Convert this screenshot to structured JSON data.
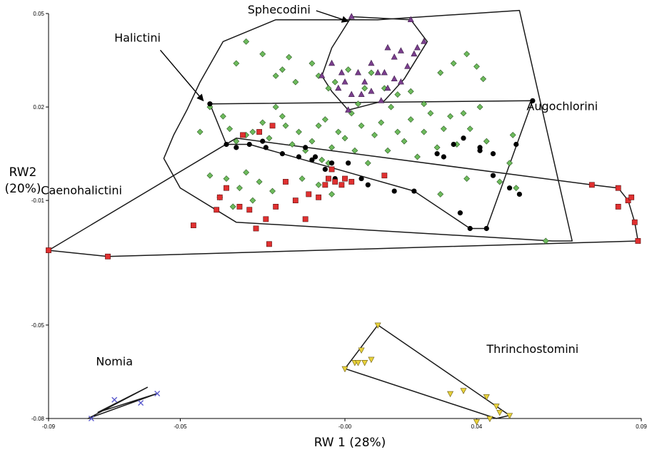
{
  "chart_data": {
    "type": "scatter",
    "title": "",
    "xlabel": "RW 1 (28%)",
    "ylabel_line1": "RW2",
    "ylabel_line2": "(20%)",
    "xlim": [
      -0.09,
      0.09
    ],
    "ylim": [
      -0.08,
      0.05
    ],
    "x_ticks": [
      {
        "value": -0.09,
        "label": "-0.09"
      },
      {
        "value": -0.05,
        "label": "-0.05"
      },
      {
        "value": 0.0,
        "label": "-0.00"
      },
      {
        "value": 0.04,
        "label": "0.04"
      },
      {
        "value": 0.09,
        "label": "0.09"
      }
    ],
    "y_ticks": [
      {
        "value": 0.05,
        "label": "0.05"
      },
      {
        "value": 0.02,
        "label": "0.02"
      },
      {
        "value": -0.01,
        "label": "-0.01"
      },
      {
        "value": -0.05,
        "label": "-0.05"
      },
      {
        "value": -0.08,
        "label": "-0.08"
      }
    ],
    "grid": false,
    "legend": "none",
    "series": [
      {
        "name": "Halictini",
        "marker": "diamond",
        "color": "#6dbb5c",
        "hull": [
          [
            0.053,
            0.051
          ],
          [
            0.069,
            -0.023
          ],
          [
            0.063,
            -0.023
          ],
          [
            -0.033,
            -0.017
          ],
          [
            -0.05,
            -0.006
          ],
          [
            -0.055,
            0.0035
          ],
          [
            -0.052,
            0.011
          ],
          [
            -0.048,
            0.019
          ],
          [
            -0.044,
            0.028
          ],
          [
            -0.037,
            0.041
          ],
          [
            -0.021,
            0.048
          ],
          [
            0.01,
            0.048
          ]
        ],
        "points": [
          [
            -0.03,
            0.041
          ],
          [
            -0.033,
            0.034
          ],
          [
            -0.025,
            0.037
          ],
          [
            -0.021,
            0.03
          ],
          [
            -0.019,
            0.032
          ],
          [
            -0.017,
            0.036
          ],
          [
            -0.015,
            0.028
          ],
          [
            -0.01,
            0.034
          ],
          [
            -0.008,
            0.03
          ],
          [
            -0.005,
            0.026
          ],
          [
            -0.003,
            0.028
          ],
          [
            0.001,
            0.032
          ],
          [
            0.004,
            0.021
          ],
          [
            0.006,
            0.026
          ],
          [
            0.008,
            0.031
          ],
          [
            0.012,
            0.026
          ],
          [
            0.016,
            0.024
          ],
          [
            0.02,
            0.025
          ],
          [
            0.024,
            0.021
          ],
          [
            0.029,
            0.031
          ],
          [
            0.033,
            0.034
          ],
          [
            0.037,
            0.037
          ],
          [
            0.04,
            0.033
          ],
          [
            0.042,
            0.029
          ],
          [
            -0.044,
            0.012
          ],
          [
            -0.041,
            0.02
          ],
          [
            -0.037,
            0.017
          ],
          [
            -0.035,
            0.013
          ],
          [
            -0.033,
            0.009
          ],
          [
            -0.03,
            0.011
          ],
          [
            -0.028,
            0.012
          ],
          [
            -0.025,
            0.015
          ],
          [
            -0.023,
            0.01
          ],
          [
            -0.021,
            0.02
          ],
          [
            -0.019,
            0.017
          ],
          [
            -0.018,
            0.014
          ],
          [
            -0.016,
            0.008
          ],
          [
            -0.014,
            0.012
          ],
          [
            -0.012,
            0.006
          ],
          [
            -0.01,
            0.009
          ],
          [
            -0.008,
            0.014
          ],
          [
            -0.007,
            0.003
          ],
          [
            -0.006,
            0.016
          ],
          [
            -0.005,
            0.002
          ],
          [
            -0.004,
            0.007
          ],
          [
            -0.002,
            0.012
          ],
          [
            0.0,
            0.01
          ],
          [
            0.002,
            0.018
          ],
          [
            0.003,
            0.006
          ],
          [
            0.005,
            0.014
          ],
          [
            0.007,
            0.002
          ],
          [
            0.009,
            0.011
          ],
          [
            0.011,
            0.015
          ],
          [
            0.013,
            0.006
          ],
          [
            0.014,
            0.02
          ],
          [
            0.016,
            0.012
          ],
          [
            0.018,
            0.009
          ],
          [
            0.02,
            0.016
          ],
          [
            0.022,
            0.004
          ],
          [
            0.024,
            0.012
          ],
          [
            0.026,
            0.018
          ],
          [
            0.028,
            0.007
          ],
          [
            0.03,
            0.013
          ],
          [
            0.032,
            0.017
          ],
          [
            0.034,
            0.008
          ],
          [
            0.036,
            0.018
          ],
          [
            0.038,
            0.013
          ],
          [
            0.041,
            0.02
          ],
          [
            0.043,
            0.009
          ],
          [
            -0.041,
            -0.002
          ],
          [
            -0.038,
            -0.009
          ],
          [
            -0.036,
            -0.003
          ],
          [
            -0.034,
            -0.012
          ],
          [
            -0.032,
            -0.006
          ],
          [
            -0.03,
            -0.001
          ],
          [
            -0.028,
            -0.01
          ],
          [
            -0.026,
            -0.004
          ],
          [
            -0.022,
            -0.007
          ],
          [
            -0.013,
            -0.003
          ],
          [
            -0.008,
            -0.005
          ],
          [
            -0.004,
            -0.008
          ],
          [
            0.029,
            -0.008
          ],
          [
            0.037,
            -0.003
          ],
          [
            0.047,
            -0.004
          ],
          [
            0.05,
            0.002
          ],
          [
            0.052,
            -0.006
          ],
          [
            0.051,
            0.011
          ],
          [
            0.061,
            -0.023
          ]
        ]
      },
      {
        "name": "Sphecodini",
        "marker": "triangle-up",
        "color": "#7b3f8e",
        "hull": [
          [
            0.002,
            0.049
          ],
          [
            0.02,
            0.048
          ],
          [
            0.025,
            0.041
          ],
          [
            0.018,
            0.029
          ],
          [
            0.012,
            0.022
          ],
          [
            0.001,
            0.019
          ],
          [
            -0.004,
            0.025
          ],
          [
            -0.007,
            0.03
          ],
          [
            -0.004,
            0.039
          ]
        ],
        "points": [
          [
            0.002,
            0.049
          ],
          [
            0.02,
            0.048
          ],
          [
            0.024,
            0.041
          ],
          [
            -0.007,
            0.03
          ],
          [
            0.001,
            0.019
          ],
          [
            0.011,
            0.022
          ],
          [
            0.017,
            0.028
          ],
          [
            -0.004,
            0.034
          ],
          [
            -0.002,
            0.026
          ],
          [
            0.0,
            0.028
          ],
          [
            0.002,
            0.024
          ],
          [
            0.004,
            0.031
          ],
          [
            0.006,
            0.028
          ],
          [
            0.008,
            0.025
          ],
          [
            0.01,
            0.031
          ],
          [
            0.013,
            0.026
          ],
          [
            0.015,
            0.029
          ],
          [
            0.019,
            0.033
          ],
          [
            0.021,
            0.037
          ],
          [
            0.022,
            0.039
          ],
          [
            0.017,
            0.038
          ],
          [
            0.015,
            0.036
          ],
          [
            0.013,
            0.039
          ],
          [
            0.008,
            0.034
          ],
          [
            -0.001,
            0.031
          ],
          [
            0.005,
            0.024
          ],
          [
            0.012,
            0.031
          ]
        ]
      },
      {
        "name": "Augochlorini",
        "marker": "circle",
        "color": "#000000",
        "hull": [
          [
            -0.041,
            0.021
          ],
          [
            0.057,
            0.022
          ],
          [
            0.043,
            -0.019
          ],
          [
            0.038,
            -0.019
          ],
          [
            0.021,
            -0.007
          ],
          [
            -0.029,
            0.008
          ],
          [
            -0.036,
            0.008
          ]
        ],
        "points": [
          [
            -0.036,
            0.008
          ],
          [
            -0.033,
            0.007
          ],
          [
            -0.029,
            0.008
          ],
          [
            -0.025,
            0.009
          ],
          [
            -0.024,
            0.007
          ],
          [
            -0.019,
            0.005
          ],
          [
            -0.014,
            0.004
          ],
          [
            -0.012,
            0.007
          ],
          [
            -0.01,
            0.003
          ],
          [
            -0.009,
            0.004
          ],
          [
            -0.006,
            0.0
          ],
          [
            -0.004,
            0.002
          ],
          [
            -0.003,
            -0.003
          ],
          [
            0.002,
            -0.004
          ],
          [
            0.005,
            -0.003
          ],
          [
            0.007,
            -0.005
          ],
          [
            0.015,
            -0.007
          ],
          [
            0.021,
            -0.007
          ],
          [
            0.035,
            -0.014
          ],
          [
            0.028,
            0.005
          ],
          [
            0.03,
            0.004
          ],
          [
            0.033,
            0.008
          ],
          [
            0.036,
            0.01
          ],
          [
            0.041,
            0.007
          ],
          [
            0.041,
            0.006
          ],
          [
            0.045,
            0.005
          ],
          [
            0.045,
            -0.002
          ],
          [
            0.05,
            -0.006
          ],
          [
            0.053,
            -0.008
          ],
          [
            0.052,
            0.008
          ],
          [
            0.038,
            -0.019
          ],
          [
            0.043,
            -0.019
          ],
          [
            0.057,
            0.022
          ],
          [
            -0.041,
            0.021
          ],
          [
            0.001,
            0.002
          ]
        ]
      },
      {
        "name": "Caenohalictini",
        "marker": "square",
        "color": "#e03030",
        "hull": [
          [
            -0.09,
            -0.026
          ],
          [
            -0.033,
            0.01
          ],
          [
            0.075,
            -0.005
          ],
          [
            0.083,
            -0.006
          ],
          [
            0.086,
            -0.01
          ],
          [
            0.088,
            -0.017
          ],
          [
            0.089,
            -0.023
          ],
          [
            -0.072,
            -0.028
          ]
        ],
        "points": [
          [
            -0.09,
            -0.026
          ],
          [
            -0.072,
            -0.028
          ],
          [
            -0.046,
            -0.018
          ],
          [
            -0.039,
            -0.013
          ],
          [
            -0.038,
            -0.009
          ],
          [
            -0.036,
            -0.006
          ],
          [
            -0.032,
            -0.012
          ],
          [
            -0.029,
            -0.013
          ],
          [
            -0.027,
            -0.019
          ],
          [
            -0.024,
            -0.016
          ],
          [
            -0.023,
            -0.024
          ],
          [
            -0.018,
            -0.004
          ],
          [
            -0.015,
            -0.01
          ],
          [
            -0.012,
            -0.016
          ],
          [
            -0.006,
            -0.005
          ],
          [
            -0.005,
            -0.003
          ],
          [
            -0.004,
            0.0
          ],
          [
            -0.003,
            -0.004
          ],
          [
            -0.001,
            -0.005
          ],
          [
            0.0,
            -0.003
          ],
          [
            0.002,
            -0.004
          ],
          [
            -0.008,
            -0.009
          ],
          [
            0.012,
            -0.002
          ],
          [
            -0.031,
            0.011
          ],
          [
            -0.026,
            0.012
          ],
          [
            -0.022,
            0.014
          ],
          [
            -0.011,
            -0.008
          ],
          [
            0.075,
            -0.005
          ],
          [
            0.083,
            -0.006
          ],
          [
            0.086,
            -0.01
          ],
          [
            0.088,
            -0.017
          ],
          [
            0.089,
            -0.023
          ],
          [
            0.083,
            -0.012
          ],
          [
            0.087,
            -0.009
          ],
          [
            -0.021,
            -0.012
          ]
        ]
      },
      {
        "name": "Nomia",
        "marker": "x",
        "color": "#5a5acc",
        "hull": [
          [
            -0.057,
            -0.072
          ],
          [
            -0.075,
            -0.078
          ],
          [
            -0.06,
            -0.07
          ],
          [
            -0.078,
            -0.08
          ]
        ],
        "points": [
          [
            -0.057,
            -0.072
          ],
          [
            -0.062,
            -0.075
          ],
          [
            -0.07,
            -0.074
          ],
          [
            -0.077,
            -0.08
          ]
        ]
      },
      {
        "name": "Thrinchostomini",
        "marker": "triangle-down",
        "color": "#e8d23a",
        "hull": [
          [
            0.01,
            -0.05
          ],
          [
            0.05,
            -0.079
          ],
          [
            0.046,
            -0.08
          ],
          [
            0.0,
            -0.064
          ]
        ],
        "points": [
          [
            0.01,
            -0.05
          ],
          [
            0.005,
            -0.058
          ],
          [
            0.003,
            -0.062
          ],
          [
            0.004,
            -0.062
          ],
          [
            0.0,
            -0.064
          ],
          [
            0.006,
            -0.062
          ],
          [
            0.032,
            -0.072
          ],
          [
            0.036,
            -0.071
          ],
          [
            0.043,
            -0.073
          ],
          [
            0.046,
            -0.076
          ],
          [
            0.047,
            -0.078
          ],
          [
            0.05,
            -0.079
          ],
          [
            0.044,
            -0.08
          ],
          [
            0.04,
            -0.081
          ],
          [
            0.008,
            -0.061
          ]
        ]
      }
    ],
    "annotations": [
      {
        "label": "Sphecodini",
        "x": -0.02,
        "y": 0.05,
        "arrow_to": [
          0.001,
          0.0475
        ]
      },
      {
        "label": "Halictini",
        "x": -0.063,
        "y": 0.041,
        "arrow_to": [
          -0.043,
          0.022
        ]
      },
      {
        "label": "Augochlorini",
        "x": 0.066,
        "y": 0.019
      },
      {
        "label": "Caenohalictini",
        "x": -0.08,
        "y": -0.008
      },
      {
        "label": "Nomia",
        "x": -0.07,
        "y": -0.063
      },
      {
        "label": "Thrinchostomini",
        "x": 0.057,
        "y": -0.059
      }
    ]
  }
}
